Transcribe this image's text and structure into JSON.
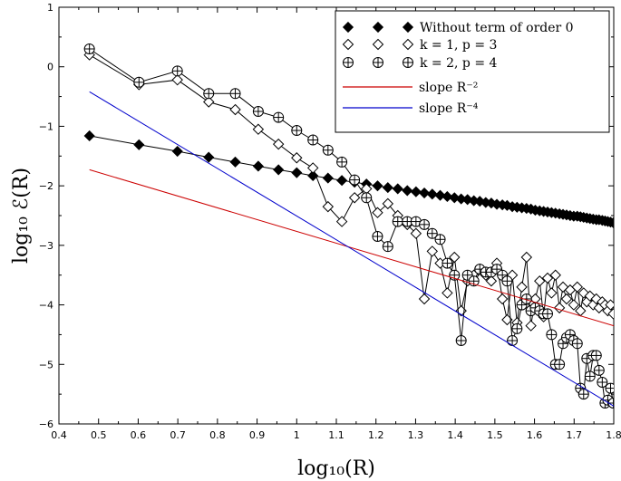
{
  "chart_data": {
    "type": "line",
    "title": "",
    "xlabel": "log₁₀(R)",
    "ylabel": "log₁₀ ℰ(R)",
    "xlim": [
      0.4,
      1.8
    ],
    "ylim": [
      -6,
      1
    ],
    "x_ticks": [
      "0.4",
      "0.5",
      "0.6",
      "0.7",
      "0.8",
      "0.9",
      "1",
      "1.1",
      "1.2",
      "1.3",
      "1.4",
      "1.5",
      "1.6",
      "1.7",
      "1.8"
    ],
    "y_ticks": [
      "1",
      "0",
      "−1",
      "−2",
      "−3",
      "−4",
      "−5",
      "−6"
    ],
    "legend_position": "top-right",
    "series": [
      {
        "name": "Without term of order 0",
        "marker": "diamond-filled",
        "color": "#000000",
        "x": [
          0.477,
          0.602,
          0.699,
          0.778,
          0.845,
          0.903,
          0.954,
          1.0,
          1.041,
          1.079,
          1.114,
          1.146,
          1.176,
          1.204,
          1.23,
          1.255,
          1.279,
          1.301,
          1.322,
          1.342,
          1.362,
          1.38,
          1.398,
          1.415,
          1.431,
          1.447,
          1.462,
          1.477,
          1.491,
          1.505,
          1.519,
          1.531,
          1.544,
          1.556,
          1.568,
          1.58,
          1.591,
          1.602,
          1.613,
          1.623,
          1.633,
          1.643,
          1.653,
          1.663,
          1.672,
          1.681,
          1.69,
          1.699,
          1.708,
          1.716,
          1.724,
          1.732,
          1.74,
          1.748,
          1.756,
          1.763,
          1.771,
          1.778,
          1.785,
          1.792,
          1.799
        ],
        "y": [
          -1.16,
          -1.31,
          -1.42,
          -1.52,
          -1.6,
          -1.67,
          -1.73,
          -1.78,
          -1.83,
          -1.87,
          -1.91,
          -1.94,
          -1.97,
          -2.0,
          -2.03,
          -2.05,
          -2.08,
          -2.1,
          -2.12,
          -2.14,
          -2.16,
          -2.18,
          -2.2,
          -2.22,
          -2.23,
          -2.25,
          -2.26,
          -2.28,
          -2.29,
          -2.31,
          -2.32,
          -2.33,
          -2.35,
          -2.36,
          -2.37,
          -2.38,
          -2.39,
          -2.41,
          -2.42,
          -2.43,
          -2.44,
          -2.45,
          -2.46,
          -2.47,
          -2.48,
          -2.49,
          -2.5,
          -2.51,
          -2.51,
          -2.52,
          -2.53,
          -2.54,
          -2.55,
          -2.56,
          -2.57,
          -2.57,
          -2.58,
          -2.59,
          -2.6,
          -2.61,
          -2.62
        ]
      },
      {
        "name": "k = 1, p = 3",
        "marker": "diamond-open",
        "color": "#000000",
        "x": [
          0.477,
          0.602,
          0.699,
          0.778,
          0.845,
          0.903,
          0.954,
          1.0,
          1.041,
          1.079,
          1.114,
          1.146,
          1.176,
          1.204,
          1.23,
          1.255,
          1.279,
          1.301,
          1.322,
          1.342,
          1.362,
          1.38,
          1.398,
          1.415,
          1.431,
          1.447,
          1.462,
          1.477,
          1.491,
          1.505,
          1.519,
          1.531,
          1.544,
          1.556,
          1.568,
          1.58,
          1.591,
          1.602,
          1.613,
          1.623,
          1.633,
          1.643,
          1.653,
          1.663,
          1.672,
          1.681,
          1.69,
          1.699,
          1.708,
          1.716,
          1.724,
          1.732,
          1.74,
          1.748,
          1.756,
          1.763,
          1.771,
          1.778,
          1.785,
          1.792,
          1.799
        ],
        "y": [
          0.2,
          -0.3,
          -0.22,
          -0.59,
          -0.72,
          -1.05,
          -1.3,
          -1.53,
          -1.7,
          -2.35,
          -2.6,
          -2.2,
          -2.05,
          -2.45,
          -2.3,
          -2.5,
          -2.65,
          -2.8,
          -3.9,
          -3.1,
          -3.3,
          -3.8,
          -3.2,
          -4.1,
          -3.6,
          -3.5,
          -3.4,
          -3.5,
          -3.6,
          -3.3,
          -3.9,
          -4.25,
          -3.5,
          -4.3,
          -3.7,
          -3.2,
          -4.35,
          -3.9,
          -3.6,
          -4.2,
          -3.55,
          -3.8,
          -3.5,
          -4.05,
          -3.7,
          -3.9,
          -3.75,
          -4.0,
          -3.7,
          -4.1,
          -3.8,
          -3.95,
          -3.85,
          -4.0,
          -3.9,
          -4.05,
          -3.95,
          -4.0,
          -4.1,
          -4.0,
          -4.15
        ]
      },
      {
        "name": "k = 2, p = 4",
        "marker": "circle-plus",
        "color": "#000000",
        "x": [
          0.477,
          0.602,
          0.699,
          0.778,
          0.845,
          0.903,
          0.954,
          1.0,
          1.041,
          1.079,
          1.114,
          1.146,
          1.176,
          1.204,
          1.23,
          1.255,
          1.279,
          1.301,
          1.322,
          1.342,
          1.362,
          1.38,
          1.398,
          1.415,
          1.431,
          1.447,
          1.462,
          1.477,
          1.491,
          1.505,
          1.519,
          1.531,
          1.544,
          1.556,
          1.568,
          1.58,
          1.591,
          1.602,
          1.613,
          1.623,
          1.633,
          1.643,
          1.653,
          1.663,
          1.672,
          1.681,
          1.69,
          1.699,
          1.708,
          1.716,
          1.724,
          1.732,
          1.74,
          1.748,
          1.756,
          1.763,
          1.771,
          1.778,
          1.785,
          1.792,
          1.799
        ],
        "y": [
          0.3,
          -0.26,
          -0.07,
          -0.45,
          -0.45,
          -0.75,
          -0.85,
          -1.07,
          -1.23,
          -1.4,
          -1.6,
          -1.9,
          -2.2,
          -2.85,
          -3.02,
          -2.6,
          -2.6,
          -2.6,
          -2.65,
          -2.8,
          -2.9,
          -3.3,
          -3.5,
          -4.6,
          -3.5,
          -3.6,
          -3.4,
          -3.45,
          -3.45,
          -3.4,
          -3.5,
          -3.6,
          -4.6,
          -4.4,
          -4.0,
          -3.9,
          -4.1,
          -4.05,
          -4.1,
          -4.15,
          -4.15,
          -4.5,
          -5.0,
          -5.0,
          -4.65,
          -4.55,
          -4.5,
          -4.6,
          -4.65,
          -5.4,
          -5.5,
          -4.9,
          -5.2,
          -4.85,
          -4.85,
          -5.1,
          -5.3,
          -5.65,
          -5.6,
          -5.4,
          -5.65
        ]
      },
      {
        "name": "slope R⁻²",
        "marker": "none",
        "color": "#cc0000",
        "x": [
          0.477,
          1.8
        ],
        "y": [
          -1.73,
          -4.35
        ]
      },
      {
        "name": "slope R⁻⁴",
        "marker": "none",
        "color": "#0000cc",
        "x": [
          0.477,
          1.8
        ],
        "y": [
          -0.42,
          -5.7
        ]
      }
    ]
  }
}
